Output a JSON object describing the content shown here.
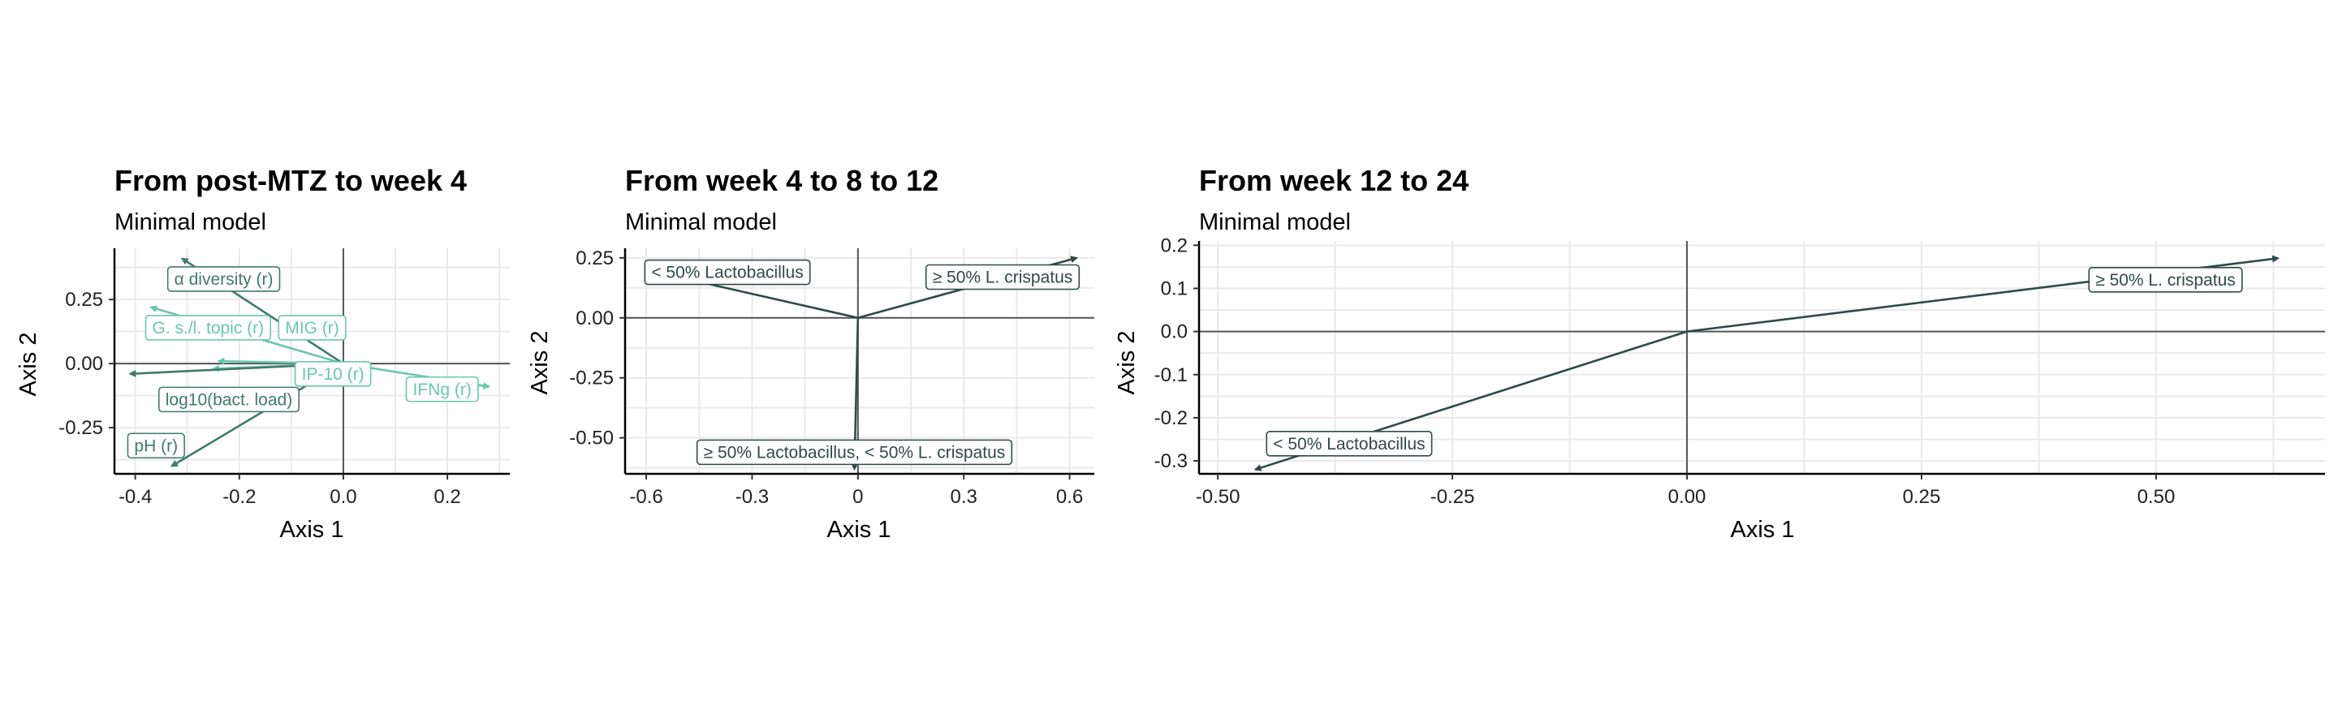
{
  "colors": {
    "dark": "#2e4a48",
    "mid": "#3f7a6a",
    "light": "#69c7ad",
    "grid": "#e9e9e9",
    "zero": "#555555"
  },
  "chart_data": [
    {
      "type": "biplot",
      "title": "From post-MTZ to week 4",
      "subtitle": "Minimal model",
      "xlabel": "Axis 1",
      "ylabel": "Axis 2",
      "xlim": [
        -0.44,
        0.32
      ],
      "ylim": [
        -0.43,
        0.45
      ],
      "xticks": [
        -0.4,
        -0.2,
        0.0,
        0.2
      ],
      "xtick_labels": [
        "-0.4",
        "-0.2",
        "0.0",
        "0.2"
      ],
      "yticks": [
        -0.25,
        0.0,
        0.25
      ],
      "ytick_labels": [
        "-0.25",
        "0.00",
        "0.25"
      ],
      "grid": true,
      "arrows": [
        {
          "label": "α diversity (r)",
          "x": -0.31,
          "y": 0.41,
          "lx": -0.23,
          "ly": 0.33,
          "color": "mid"
        },
        {
          "label": "G. s./l. topic (r)",
          "x": -0.37,
          "y": 0.22,
          "lx": -0.26,
          "ly": 0.14,
          "color": "light"
        },
        {
          "label": "MIG (r)",
          "x": -0.24,
          "y": 0.01,
          "lx": -0.06,
          "ly": 0.14,
          "color": "light"
        },
        {
          "label": "IP-10 (r)",
          "x": -0.25,
          "y": -0.02,
          "lx": -0.02,
          "ly": -0.04,
          "color": "light"
        },
        {
          "label": "IFNg (r)",
          "x": 0.28,
          "y": -0.09,
          "lx": 0.19,
          "ly": -0.1,
          "color": "light"
        },
        {
          "label": "log10(bact. load)",
          "x": -0.41,
          "y": -0.04,
          "lx": -0.22,
          "ly": -0.14,
          "color": "mid"
        },
        {
          "label": "pH (r)",
          "x": -0.33,
          "y": -0.4,
          "lx": -0.36,
          "ly": -0.32,
          "color": "mid"
        }
      ]
    },
    {
      "type": "biplot",
      "title": "From week 4 to 8 to 12",
      "subtitle": "Minimal model",
      "xlabel": "Axis 1",
      "ylabel": "Axis 2",
      "xlim": [
        -0.66,
        0.67
      ],
      "ylim": [
        -0.65,
        0.29
      ],
      "xticks": [
        -0.6,
        -0.3,
        0.0,
        0.3,
        0.6
      ],
      "xtick_labels": [
        "-0.6",
        "-0.3",
        "0",
        "0.3",
        "0.6"
      ],
      "yticks": [
        -0.5,
        -0.25,
        0.0,
        0.25
      ],
      "ytick_labels": [
        "-0.50",
        "-0.25",
        "0.00",
        "0.25"
      ],
      "grid": true,
      "arrows": [
        {
          "label": "< 50% Lactobacillus",
          "x": -0.6,
          "y": 0.2,
          "lx": -0.37,
          "ly": 0.19,
          "color": "dark"
        },
        {
          "label": "≥ 50% L. crispatus",
          "x": 0.62,
          "y": 0.25,
          "lx": 0.41,
          "ly": 0.17,
          "color": "dark"
        },
        {
          "label": "≥ 50% Lactobacillus, < 50% L. crispatus",
          "x": -0.01,
          "y": -0.63,
          "lx": -0.01,
          "ly": -0.56,
          "color": "dark"
        }
      ]
    },
    {
      "type": "biplot",
      "title": "From week 12 to 24",
      "subtitle": "Minimal model",
      "xlabel": "Axis 1",
      "ylabel": "Axis 2",
      "xlim": [
        -0.52,
        0.68
      ],
      "ylim": [
        -0.33,
        0.21
      ],
      "xticks": [
        -0.5,
        -0.25,
        0.0,
        0.25,
        0.5
      ],
      "xtick_labels": [
        "-0.50",
        "-0.25",
        "0.00",
        "0.25",
        "0.50"
      ],
      "yticks": [
        -0.3,
        -0.2,
        -0.1,
        0.0,
        0.1,
        0.2
      ],
      "ytick_labels": [
        "-0.3",
        "-0.2",
        "-0.1",
        "0.0",
        "0.1",
        "0.2"
      ],
      "grid": true,
      "arrows": [
        {
          "label": "≥ 50% L. crispatus",
          "x": 0.63,
          "y": 0.17,
          "lx": 0.51,
          "ly": 0.12,
          "color": "dark"
        },
        {
          "label": "< 50% Lactobacillus",
          "x": -0.46,
          "y": -0.32,
          "lx": -0.36,
          "ly": -0.26,
          "color": "dark"
        }
      ]
    }
  ]
}
